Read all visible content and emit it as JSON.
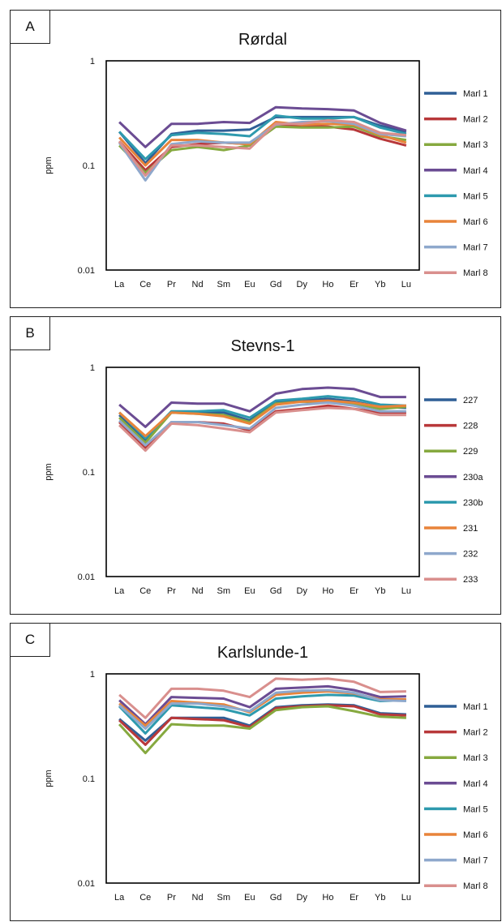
{
  "panels": [
    {
      "letter": "A"
    },
    {
      "letter": "B"
    },
    {
      "letter": "C"
    }
  ],
  "chart_data": [
    {
      "type": "line",
      "title": "Rørdal",
      "xlabel": "",
      "ylabel": "ppm",
      "yscale": "log",
      "ylim": [
        0.01,
        1
      ],
      "yticks": [
        "1",
        "0.1",
        "0.01"
      ],
      "grid": false,
      "legend": "right",
      "categories": [
        "La",
        "Ce",
        "Pr",
        "Nd",
        "Sm",
        "Eu",
        "Gd",
        "Dy",
        "Ho",
        "Er",
        "Yb",
        "Lu"
      ],
      "series": [
        {
          "name": "Marl 1",
          "color": "#2f5f96",
          "values": [
            0.21,
            0.105,
            0.2,
            0.215,
            0.215,
            0.22,
            0.29,
            0.29,
            0.29,
            0.29,
            0.24,
            0.21
          ]
        },
        {
          "name": "Marl 2",
          "color": "#b8383a",
          "values": [
            0.17,
            0.09,
            0.15,
            0.16,
            0.165,
            0.16,
            0.24,
            0.24,
            0.235,
            0.22,
            0.18,
            0.155
          ]
        },
        {
          "name": "Marl 3",
          "color": "#86a93f",
          "values": [
            0.155,
            0.085,
            0.14,
            0.15,
            0.14,
            0.155,
            0.235,
            0.23,
            0.23,
            0.235,
            0.19,
            0.175
          ]
        },
        {
          "name": "Marl 4",
          "color": "#6b4c93",
          "values": [
            0.26,
            0.15,
            0.25,
            0.25,
            0.26,
            0.255,
            0.36,
            0.35,
            0.345,
            0.335,
            0.255,
            0.215
          ]
        },
        {
          "name": "Marl 5",
          "color": "#2e9aae",
          "values": [
            0.21,
            0.115,
            0.195,
            0.205,
            0.2,
            0.19,
            0.3,
            0.28,
            0.28,
            0.29,
            0.23,
            0.2
          ]
        },
        {
          "name": "Marl 6",
          "color": "#e8843a",
          "values": [
            0.185,
            0.1,
            0.175,
            0.175,
            0.165,
            0.16,
            0.26,
            0.245,
            0.25,
            0.245,
            0.195,
            0.165
          ]
        },
        {
          "name": "Marl 7",
          "color": "#8ea8cc",
          "values": [
            0.165,
            0.072,
            0.16,
            0.17,
            0.165,
            0.165,
            0.245,
            0.26,
            0.265,
            0.25,
            0.2,
            0.19
          ]
        },
        {
          "name": "Marl 8",
          "color": "#d98f8d",
          "values": [
            0.17,
            0.08,
            0.155,
            0.155,
            0.15,
            0.145,
            0.25,
            0.25,
            0.27,
            0.26,
            0.205,
            0.195
          ]
        }
      ]
    },
    {
      "type": "line",
      "title": "Stevns-1",
      "xlabel": "",
      "ylabel": "ppm",
      "yscale": "log",
      "ylim": [
        0.01,
        1
      ],
      "yticks": [
        "1",
        "0.1",
        "0.01"
      ],
      "grid": false,
      "legend": "right",
      "categories": [
        "La",
        "Ce",
        "Pr",
        "Nd",
        "Sm",
        "Eu",
        "Gd",
        "Dy",
        "Ho",
        "Er",
        "Yb",
        "Lu"
      ],
      "series": [
        {
          "name": "227",
          "color": "#2f5f96",
          "values": [
            0.35,
            0.2,
            0.37,
            0.37,
            0.37,
            0.31,
            0.46,
            0.48,
            0.5,
            0.47,
            0.42,
            0.41
          ]
        },
        {
          "name": "228",
          "color": "#b8383a",
          "values": [
            0.3,
            0.17,
            0.3,
            0.3,
            0.29,
            0.25,
            0.38,
            0.4,
            0.43,
            0.4,
            0.37,
            0.37
          ]
        },
        {
          "name": "229",
          "color": "#86a93f",
          "values": [
            0.33,
            0.19,
            0.37,
            0.36,
            0.35,
            0.3,
            0.45,
            0.47,
            0.46,
            0.45,
            0.4,
            0.42
          ]
        },
        {
          "name": "230a",
          "color": "#6b4c93",
          "values": [
            0.44,
            0.27,
            0.46,
            0.45,
            0.45,
            0.38,
            0.56,
            0.62,
            0.64,
            0.62,
            0.52,
            0.52
          ]
        },
        {
          "name": "230b",
          "color": "#2e9aae",
          "values": [
            0.37,
            0.21,
            0.38,
            0.38,
            0.39,
            0.33,
            0.48,
            0.5,
            0.53,
            0.5,
            0.44,
            0.43
          ]
        },
        {
          "name": "231",
          "color": "#e8843a",
          "values": [
            0.37,
            0.22,
            0.37,
            0.36,
            0.34,
            0.29,
            0.44,
            0.47,
            0.48,
            0.46,
            0.42,
            0.43
          ]
        },
        {
          "name": "232",
          "color": "#8ea8cc",
          "values": [
            0.31,
            0.18,
            0.3,
            0.3,
            0.28,
            0.26,
            0.41,
            0.44,
            0.46,
            0.43,
            0.38,
            0.38
          ]
        },
        {
          "name": "233",
          "color": "#d98f8d",
          "values": [
            0.28,
            0.16,
            0.29,
            0.28,
            0.26,
            0.24,
            0.37,
            0.39,
            0.41,
            0.4,
            0.35,
            0.35
          ]
        }
      ]
    },
    {
      "type": "line",
      "title": "Karlslunde-1",
      "xlabel": "",
      "ylabel": "ppm",
      "yscale": "log",
      "ylim": [
        0.01,
        1
      ],
      "yticks": [
        "1",
        "0.1",
        "0.01"
      ],
      "grid": false,
      "legend": "right",
      "categories": [
        "La",
        "Ce",
        "Pr",
        "Nd",
        "Sm",
        "Eu",
        "Gd",
        "Dy",
        "Ho",
        "Er",
        "Yb",
        "Lu"
      ],
      "series": [
        {
          "name": "Marl 1",
          "color": "#2f5f96",
          "values": [
            0.37,
            0.23,
            0.38,
            0.38,
            0.38,
            0.32,
            0.48,
            0.5,
            0.51,
            0.5,
            0.42,
            0.41
          ]
        },
        {
          "name": "Marl 2",
          "color": "#b8383a",
          "values": [
            0.36,
            0.21,
            0.38,
            0.37,
            0.36,
            0.31,
            0.47,
            0.49,
            0.5,
            0.49,
            0.41,
            0.4
          ]
        },
        {
          "name": "Marl 3",
          "color": "#86a93f",
          "values": [
            0.33,
            0.175,
            0.33,
            0.32,
            0.32,
            0.3,
            0.45,
            0.48,
            0.49,
            0.44,
            0.39,
            0.38
          ]
        },
        {
          "name": "Marl 4",
          "color": "#6b4c93",
          "values": [
            0.56,
            0.33,
            0.6,
            0.59,
            0.58,
            0.48,
            0.72,
            0.74,
            0.76,
            0.7,
            0.6,
            0.61
          ]
        },
        {
          "name": "Marl 5",
          "color": "#2e9aae",
          "values": [
            0.49,
            0.27,
            0.5,
            0.48,
            0.46,
            0.4,
            0.58,
            0.61,
            0.63,
            0.62,
            0.55,
            0.56
          ]
        },
        {
          "name": "Marl 6",
          "color": "#e8843a",
          "values": [
            0.52,
            0.32,
            0.55,
            0.53,
            0.51,
            0.43,
            0.63,
            0.66,
            0.68,
            0.65,
            0.57,
            0.57
          ]
        },
        {
          "name": "Marl 7",
          "color": "#8ea8cc",
          "values": [
            0.5,
            0.3,
            0.52,
            0.52,
            0.49,
            0.44,
            0.66,
            0.69,
            0.7,
            0.66,
            0.56,
            0.55
          ]
        },
        {
          "name": "Marl 8",
          "color": "#d98f8d",
          "values": [
            0.63,
            0.38,
            0.72,
            0.72,
            0.69,
            0.6,
            0.9,
            0.88,
            0.9,
            0.84,
            0.67,
            0.68
          ]
        }
      ]
    }
  ]
}
